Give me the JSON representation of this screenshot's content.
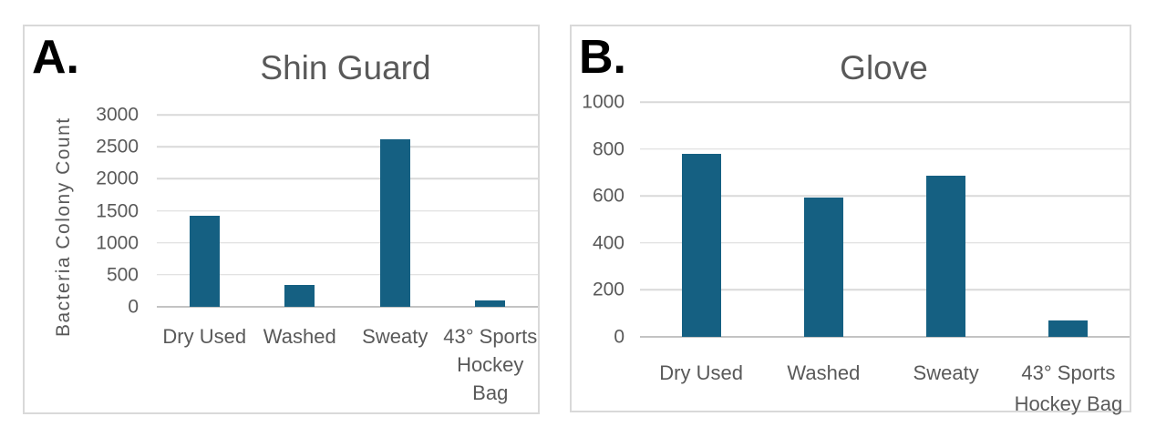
{
  "figure": {
    "background": "#ffffff",
    "panel_border_color": "#d9d9d9"
  },
  "colors": {
    "bar": "#156082",
    "text": "#595959",
    "gridline": "#d9d9d9",
    "axis_line": "#c3c3c3",
    "panel_letter": "#000000"
  },
  "chart_data": [
    {
      "type": "bar",
      "panel_label": "A.",
      "title": "Shin Guard",
      "xlabel": "",
      "ylabel": "Bacteria Colony Count",
      "categories": [
        "Dry Used",
        "Washed",
        "Sweaty",
        "43° Sports Hockey Bag"
      ],
      "category_lines": [
        [
          "Dry Used"
        ],
        [
          "Washed"
        ],
        [
          "Sweaty"
        ],
        [
          "43° Sports",
          "Hockey",
          "Bag"
        ]
      ],
      "values": [
        1420,
        340,
        2620,
        100
      ],
      "ylim": [
        0,
        3000
      ],
      "yticks": [
        3000,
        2500,
        2000,
        1500,
        1000,
        500,
        0
      ],
      "grid": true,
      "legend": false,
      "bar_width_fraction": 0.32
    },
    {
      "type": "bar",
      "panel_label": "B.",
      "title": "Glove",
      "xlabel": "",
      "ylabel": "",
      "categories": [
        "Dry Used",
        "Washed",
        "Sweaty",
        "43° Sports Hockey Bag"
      ],
      "category_lines": [
        [
          "Dry Used"
        ],
        [
          "Washed"
        ],
        [
          "Sweaty"
        ],
        [
          "43° Sports",
          "Hockey Bag"
        ]
      ],
      "values": [
        780,
        595,
        685,
        70
      ],
      "ylim": [
        0,
        1000
      ],
      "yticks": [
        1000,
        800,
        600,
        400,
        200,
        0
      ],
      "grid": true,
      "legend": false,
      "bar_width_fraction": 0.32
    }
  ]
}
